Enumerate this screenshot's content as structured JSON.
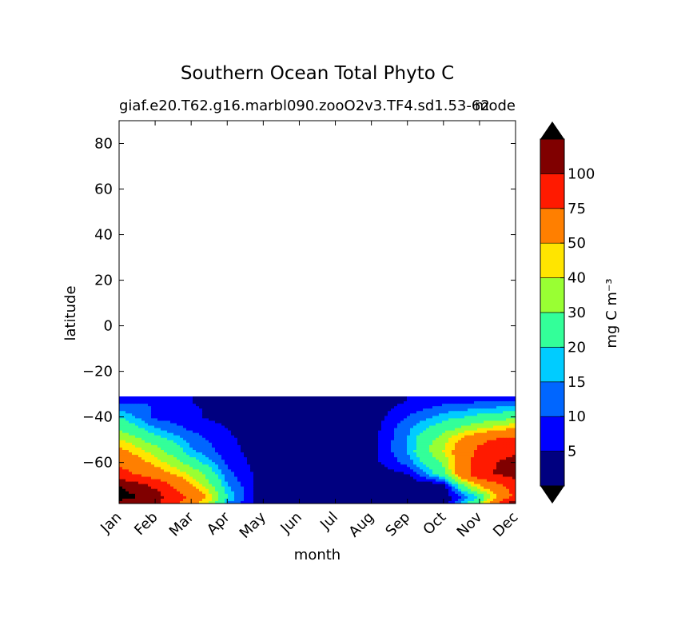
{
  "chart_data": {
    "type": "contourf",
    "title": "Southern Ocean Total Phyto C",
    "subtitle_left": "giaf.e20.T62.g16.marbl090.zooO2v3.TF4.sd1.53-62",
    "subtitle_right": "mode",
    "xlabel": "month",
    "ylabel": "latitude",
    "x_ticks": [
      "Jan",
      "Feb",
      "Mar",
      "Apr",
      "May",
      "Jun",
      "Jul",
      "Aug",
      "Sep",
      "Oct",
      "Nov",
      "Dec"
    ],
    "y_ticks": [
      "80",
      "60",
      "40",
      "20",
      "0",
      "−20",
      "−40",
      "−60"
    ],
    "y_tick_values": [
      80,
      60,
      40,
      20,
      0,
      -20,
      -40,
      -60
    ],
    "xlim": [
      1,
      12
    ],
    "ylim": [
      -78,
      90
    ],
    "data_lat_max": -31,
    "colorbar": {
      "label": "mg C m⁻³",
      "levels": [
        0,
        5,
        10,
        15,
        20,
        30,
        40,
        50,
        75,
        100
      ],
      "tick_labels": [
        "5",
        "10",
        "15",
        "20",
        "30",
        "40",
        "50",
        "75",
        "100"
      ],
      "extend": "both",
      "colors": [
        "#000080",
        "#0000ff",
        "#0066ff",
        "#00ccff",
        "#33ff99",
        "#99ff33",
        "#ffe500",
        "#ff7f00",
        "#ff1a00",
        "#800000"
      ],
      "under_color": "#000000",
      "over_color": "#000000"
    },
    "concentration_by_month": {
      "months": [
        1,
        2,
        3,
        4,
        5,
        6,
        7,
        8,
        9,
        10,
        11,
        12
      ],
      "latitudes": [
        -33,
        -40,
        -45,
        -50,
        -55,
        -60,
        -65,
        -70,
        -75,
        -78
      ],
      "values": [
        [
          8,
          10,
          5,
          4,
          2,
          2,
          2,
          2,
          5,
          8,
          9,
          9
        ],
        [
          20,
          9,
          6,
          3,
          2,
          2,
          2,
          2,
          10,
          17,
          22,
          26
        ],
        [
          28,
          15,
          9,
          5,
          2,
          2,
          2,
          2,
          14,
          25,
          38,
          50
        ],
        [
          40,
          24,
          13,
          6,
          2,
          2,
          2,
          3,
          15,
          36,
          70,
          85
        ],
        [
          55,
          35,
          16,
          7,
          2,
          2,
          2,
          3,
          15,
          40,
          80,
          95
        ],
        [
          70,
          45,
          24,
          9,
          2,
          2,
          1,
          3,
          12,
          32,
          90,
          110
        ],
        [
          85,
          60,
          38,
          12,
          2,
          1,
          0,
          1,
          5,
          25,
          95,
          110
        ],
        [
          120,
          95,
          50,
          15,
          2,
          0,
          0,
          0,
          0,
          2,
          50,
          90
        ],
        [
          130,
          110,
          70,
          20,
          0,
          0,
          0,
          0,
          0,
          1,
          20,
          80
        ],
        [
          110,
          105,
          60,
          15,
          0,
          0,
          0,
          0,
          0,
          0,
          30,
          120
        ]
      ]
    }
  }
}
